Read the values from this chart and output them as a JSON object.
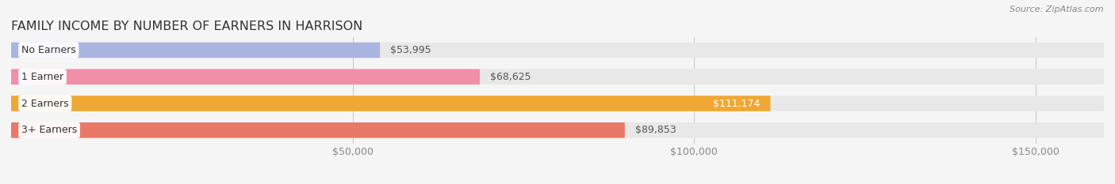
{
  "title": "FAMILY INCOME BY NUMBER OF EARNERS IN HARRISON",
  "source": "Source: ZipAtlas.com",
  "categories": [
    "No Earners",
    "1 Earner",
    "2 Earners",
    "3+ Earners"
  ],
  "values": [
    53995,
    68625,
    111174,
    89853
  ],
  "bar_colors": [
    "#aab4e0",
    "#f090a8",
    "#f0a832",
    "#e87868"
  ],
  "bg_color": "#e8e8e8",
  "label_bg_color": "#ffffff",
  "label_colors": [
    "#555555",
    "#555555",
    "#ffffff",
    "#555555"
  ],
  "xlim": [
    0,
    160000
  ],
  "xticks": [
    50000,
    100000,
    150000
  ],
  "xtick_labels": [
    "$50,000",
    "$100,000",
    "$150,000"
  ],
  "background_color": "#f5f5f5",
  "bar_height": 0.58,
  "title_fontsize": 11.5,
  "label_fontsize": 9,
  "value_fontsize": 9,
  "source_fontsize": 8
}
